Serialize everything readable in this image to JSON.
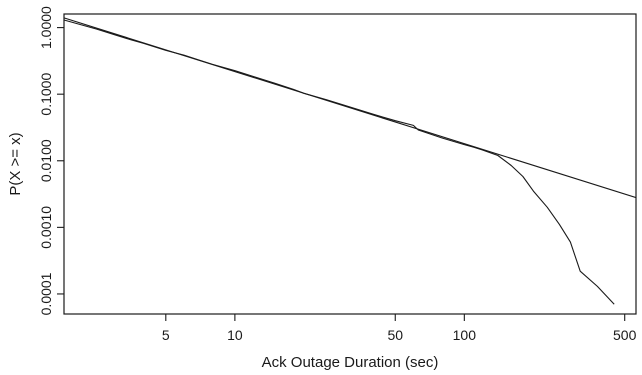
{
  "chart_data": {
    "type": "line",
    "title": "",
    "xlabel": "Ack Outage Duration (sec)",
    "ylabel": "P(X >= x)",
    "x_scale": "log",
    "y_scale": "log",
    "xlim": [
      1.8,
      560
    ],
    "ylim": [
      5e-05,
      1.6
    ],
    "x_ticks": [
      5,
      10,
      50,
      100,
      500
    ],
    "x_tick_labels": [
      "5",
      "10",
      "50",
      "100",
      "500"
    ],
    "y_ticks": [
      1.0,
      0.1,
      0.01,
      0.001,
      0.0001
    ],
    "y_tick_labels": [
      "1.0000",
      "0.1000",
      "0.0100",
      "0.0010",
      "0.0001"
    ],
    "grid": false,
    "legend": "none",
    "series": [
      {
        "values": [
          [
            1.8,
            1.3
          ],
          [
            2.5,
            0.95
          ],
          [
            3.0,
            0.78
          ],
          [
            3.5,
            0.66
          ],
          [
            4.0,
            0.58
          ],
          [
            5.0,
            0.455
          ],
          [
            6.0,
            0.385
          ],
          [
            7.0,
            0.325
          ],
          [
            8.0,
            0.28
          ],
          [
            10.0,
            0.225
          ],
          [
            12.0,
            0.185
          ],
          [
            15.0,
            0.145
          ],
          [
            18.0,
            0.118
          ],
          [
            20.0,
            0.103
          ],
          [
            25.0,
            0.083
          ],
          [
            30.0,
            0.068
          ],
          [
            40.0,
            0.05
          ],
          [
            50.0,
            0.04
          ],
          [
            60.0,
            0.034
          ],
          [
            63.0,
            0.029
          ],
          [
            80.0,
            0.022
          ],
          [
            100.0,
            0.0175
          ],
          [
            110.0,
            0.016
          ],
          [
            120.0,
            0.0145
          ],
          [
            140.0,
            0.012
          ],
          [
            160.0,
            0.0085
          ],
          [
            180.0,
            0.0058
          ],
          [
            200.0,
            0.0035
          ],
          [
            230.0,
            0.002
          ],
          [
            260.0,
            0.0011
          ],
          [
            290.0,
            0.0006
          ],
          [
            320.0,
            0.00022
          ],
          [
            380.0,
            0.00013
          ],
          [
            450.0,
            7e-05
          ]
        ]
      },
      {
        "values": [
          [
            1.8,
            1.4
          ],
          [
            560.0,
            0.0028
          ]
        ]
      }
    ]
  }
}
